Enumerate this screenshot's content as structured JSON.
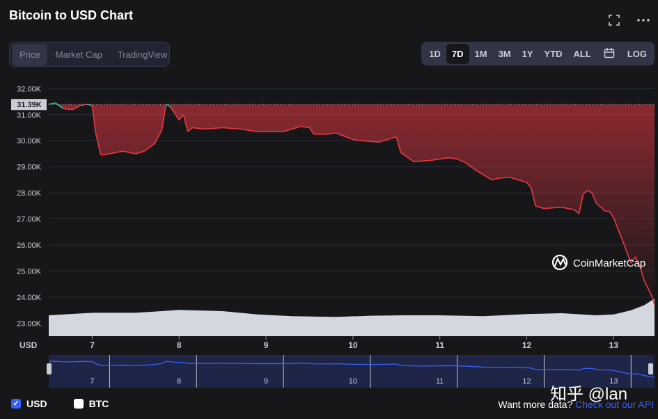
{
  "header": {
    "title": "Bitcoin to USD Chart",
    "fullscreen_icon": "fullscreen-icon",
    "more_icon": "more-icon"
  },
  "tabs": [
    {
      "label": "Price",
      "active": true
    },
    {
      "label": "Market Cap",
      "active": false
    },
    {
      "label": "TradingView",
      "active": false
    }
  ],
  "ranges": [
    {
      "label": "1D",
      "active": false
    },
    {
      "label": "7D",
      "active": true
    },
    {
      "label": "1M",
      "active": false
    },
    {
      "label": "3M",
      "active": false
    },
    {
      "label": "1Y",
      "active": false
    },
    {
      "label": "YTD",
      "active": false
    },
    {
      "label": "ALL",
      "active": false
    },
    {
      "label": "",
      "icon": "calendar-icon"
    },
    {
      "label": "LOG",
      "active": false
    }
  ],
  "legend": [
    {
      "label": "USD",
      "checked": true,
      "icon": "checkbox-checked-icon"
    },
    {
      "label": "BTC",
      "checked": false,
      "icon": "checkbox-unchecked-icon"
    }
  ],
  "api": {
    "prefix": "Want more data?",
    "link": "Check out our API"
  },
  "watermark": {
    "text": "CoinMarketCap",
    "icon": "coinmarketcap-logo-icon"
  },
  "overlay_text": "知乎 @lan",
  "colors": {
    "up": "#16c784",
    "down": "#ea3943",
    "accent": "#3861fb",
    "volume": "#d4d7e0"
  },
  "chart_data": {
    "type": "line",
    "title": "",
    "xlabel": "",
    "ylabel": "USD",
    "ylim": [
      22500,
      32250
    ],
    "yticks": [
      "32.00K",
      "31.00K",
      "30.00K",
      "29.00K",
      "28.00K",
      "27.00K",
      "26.00K",
      "25.00K",
      "24.00K",
      "23.00K"
    ],
    "ytick_values": [
      32000,
      31000,
      30000,
      29000,
      28000,
      27000,
      26000,
      25000,
      24000,
      23000
    ],
    "xticks": [
      "7",
      "8",
      "9",
      "10",
      "11",
      "12",
      "13"
    ],
    "xtick_values": [
      7,
      8,
      9,
      10,
      11,
      12,
      13
    ],
    "xlim": [
      6.5,
      13.47
    ],
    "current_price_label": "31.39K",
    "current_price_value": 31390,
    "grid": true,
    "series": [
      {
        "x": [
          6.5,
          6.58,
          6.66,
          6.72,
          6.78,
          6.86,
          6.94,
          7.0,
          7.04,
          7.1,
          7.2,
          7.35,
          7.5,
          7.6,
          7.72,
          7.8,
          7.85,
          7.9,
          7.95,
          8.0,
          8.05,
          8.1,
          8.15,
          8.3,
          8.5,
          8.7,
          8.9,
          9.2,
          9.4,
          9.5,
          9.55,
          9.7,
          9.8,
          10.0,
          10.1,
          10.3,
          10.5,
          10.55,
          10.7,
          10.9,
          11.0,
          11.1,
          11.2,
          11.3,
          11.4,
          11.6,
          11.65,
          11.8,
          12.0,
          12.05,
          12.1,
          12.2,
          12.4,
          12.55,
          12.6,
          12.65,
          12.7,
          12.75,
          12.8,
          12.9,
          12.95,
          13.0,
          13.05,
          13.1,
          13.15,
          13.2,
          13.25,
          13.3,
          13.35,
          13.4,
          13.45,
          13.47
        ],
        "values": [
          31400,
          31450,
          31250,
          31200,
          31200,
          31350,
          31400,
          31350,
          30300,
          29450,
          29500,
          29600,
          29500,
          29600,
          29900,
          30400,
          31400,
          31300,
          31050,
          30800,
          31000,
          30350,
          30500,
          30450,
          30500,
          30450,
          30350,
          30350,
          30550,
          30500,
          30250,
          30250,
          30300,
          30050,
          30000,
          29950,
          30150,
          29550,
          29200,
          29250,
          29300,
          29350,
          29300,
          29150,
          28900,
          28500,
          28550,
          28600,
          28400,
          28200,
          27500,
          27400,
          27450,
          27350,
          27200,
          27950,
          28100,
          28000,
          27600,
          27300,
          27300,
          27050,
          26600,
          26200,
          25750,
          25300,
          25550,
          25200,
          24650,
          24300,
          23950,
          23700
        ]
      }
    ],
    "volume": {
      "x": [
        6.5,
        7.0,
        7.5,
        7.8,
        8.0,
        8.5,
        8.9,
        9.3,
        9.8,
        10.2,
        10.6,
        11.0,
        11.5,
        12.0,
        12.4,
        12.8,
        13.0,
        13.2,
        13.35,
        13.47
      ],
      "values": [
        0.5,
        0.56,
        0.56,
        0.6,
        0.63,
        0.6,
        0.52,
        0.48,
        0.46,
        0.49,
        0.5,
        0.5,
        0.48,
        0.53,
        0.55,
        0.5,
        0.52,
        0.62,
        0.74,
        0.9
      ]
    },
    "navigator": {
      "xticks": [
        "7",
        "8",
        "9",
        "10",
        "11",
        "12",
        "13"
      ],
      "xtick_values": [
        7,
        8,
        9,
        10,
        11,
        12,
        13
      ]
    }
  }
}
